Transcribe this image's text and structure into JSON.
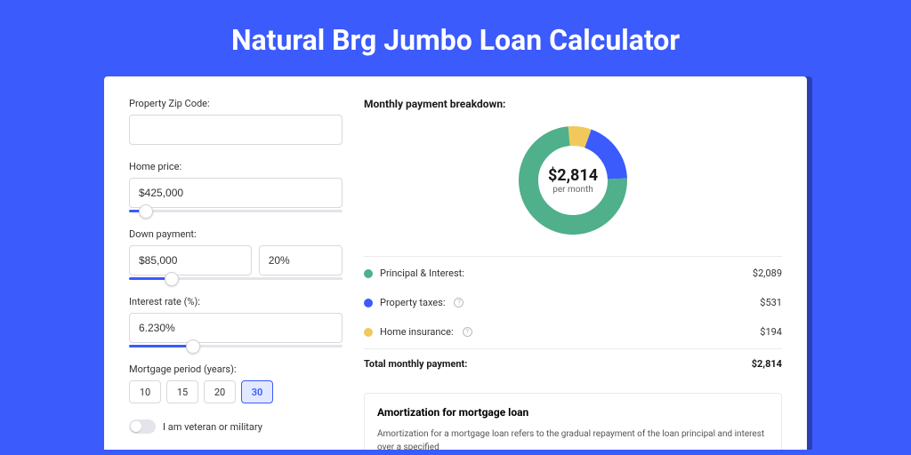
{
  "page": {
    "title": "Natural Brg Jumbo Loan Calculator",
    "background_color": "#3b5bfd",
    "card_shadow_color": "#2a3fb0"
  },
  "form": {
    "zip": {
      "label": "Property Zip Code:",
      "value": ""
    },
    "home_price": {
      "label": "Home price:",
      "value": "$425,000",
      "slider_pct": 8
    },
    "down_payment": {
      "label": "Down payment:",
      "amount": "$85,000",
      "percent": "20%",
      "slider_pct": 20
    },
    "interest_rate": {
      "label": "Interest rate (%):",
      "value": "6.230%",
      "slider_pct": 30
    },
    "period": {
      "label": "Mortgage period (years):",
      "options": [
        "10",
        "15",
        "20",
        "30"
      ],
      "selected": "30"
    },
    "veteran": {
      "label": "I am veteran or military",
      "on": false
    }
  },
  "breakdown": {
    "title": "Monthly payment breakdown:",
    "center_amount": "$2,814",
    "center_sub": "per month",
    "items": [
      {
        "label": "Principal & Interest:",
        "value": "$2,089",
        "color": "#4fb08b",
        "info": false,
        "num": 2089
      },
      {
        "label": "Property taxes:",
        "value": "$531",
        "color": "#3b5bfd",
        "info": true,
        "num": 531
      },
      {
        "label": "Home insurance:",
        "value": "$194",
        "color": "#f0c95a",
        "info": true,
        "num": 194
      }
    ],
    "total_label": "Total monthly payment:",
    "total_value": "$2,814",
    "donut": {
      "radius": 50,
      "stroke": 22,
      "background_color": "#ffffff"
    }
  },
  "amortization": {
    "title": "Amortization for mortgage loan",
    "text": "Amortization for a mortgage loan refers to the gradual repayment of the loan principal and interest over a specified"
  }
}
